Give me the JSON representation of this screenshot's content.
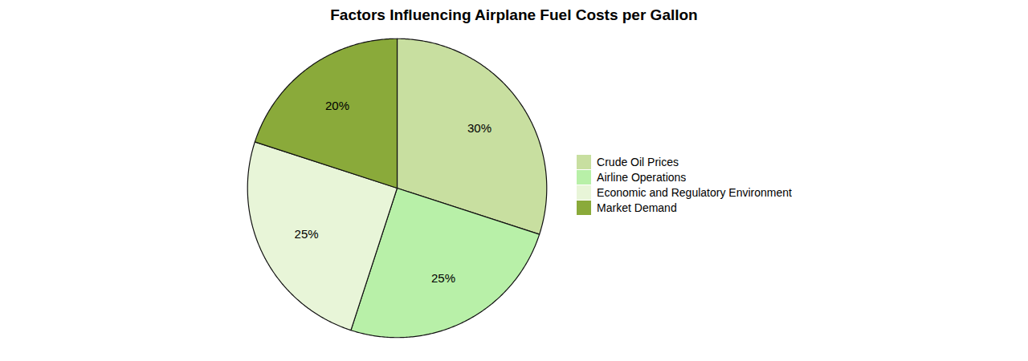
{
  "chart_data": {
    "type": "pie",
    "title": "Factors Influencing Airplane Fuel Costs per Gallon",
    "categories": [
      "Crude Oil Prices",
      "Airline Operations",
      "Economic and Regulatory Environment",
      "Market Demand"
    ],
    "values": [
      30,
      25,
      25,
      20
    ],
    "value_labels": [
      "30%",
      "25%",
      "25%",
      "20%"
    ],
    "colors": [
      "#c8dfa0",
      "#b8f0a8",
      "#e8f5d8",
      "#8aaa3a"
    ],
    "data_labels": true,
    "legend": "right"
  }
}
